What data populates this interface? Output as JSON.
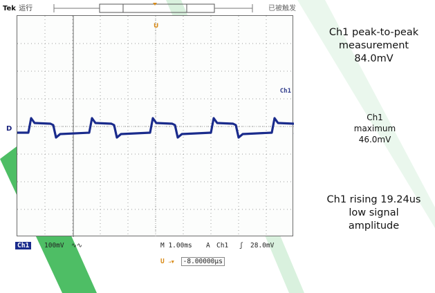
{
  "scope": {
    "brand": "Tek",
    "run_status": "运行",
    "trigger_state": "已被触发",
    "ch1_label": "Ch1",
    "ground_marker": "D",
    "trigger_marker_symbol": "U",
    "bottom": {
      "channel": "Ch1",
      "volts_per_div": "100mV",
      "coupling_symbol": "∿∿",
      "timebase": "M 1.00ms",
      "trigger_mode": "A",
      "trigger_source": "Ch1",
      "trigger_slope": "ʃ",
      "trigger_level": "28.0mV"
    },
    "offset": {
      "icon": "U",
      "arrow": "→▼",
      "value": "-8.00000µs"
    },
    "colors": {
      "trace": "#1a2b8c",
      "grid": "#9a9a9a",
      "trigger": "#d98c1a",
      "stripe": "#2fb34a"
    }
  },
  "measurements": {
    "peak_to_peak": [
      "Ch1 peak-to-peak",
      "measurement",
      "84.0mV"
    ],
    "maximum": [
      "Ch1",
      "maximum",
      "46.0mV"
    ],
    "rising": [
      "Ch1 rising 19.24us",
      "low signal",
      "amplitude"
    ]
  }
}
